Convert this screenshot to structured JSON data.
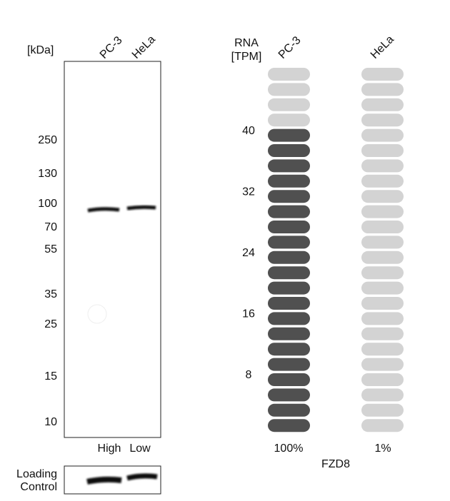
{
  "blot": {
    "unit": "[kDa]",
    "lanes": [
      "PC-3",
      "HeLa"
    ],
    "markers": [
      250,
      130,
      100,
      70,
      55,
      35,
      25,
      15,
      10
    ],
    "levels": [
      "High",
      "Low"
    ],
    "loading_control": [
      "Loading",
      "Control"
    ]
  },
  "rna": {
    "header": [
      "RNA",
      "[TPM]"
    ],
    "lanes": [
      "PC-3",
      "HeLa"
    ],
    "tpm": [
      40,
      0.4
    ],
    "percent": [
      "100%",
      "1%"
    ],
    "tpm_range": [
      0,
      48
    ],
    "tpm_ticks": [
      8,
      16,
      24,
      32,
      40
    ],
    "gene": "FZD8",
    "colors": [
      "#505050",
      "#d3d3d3"
    ]
  }
}
